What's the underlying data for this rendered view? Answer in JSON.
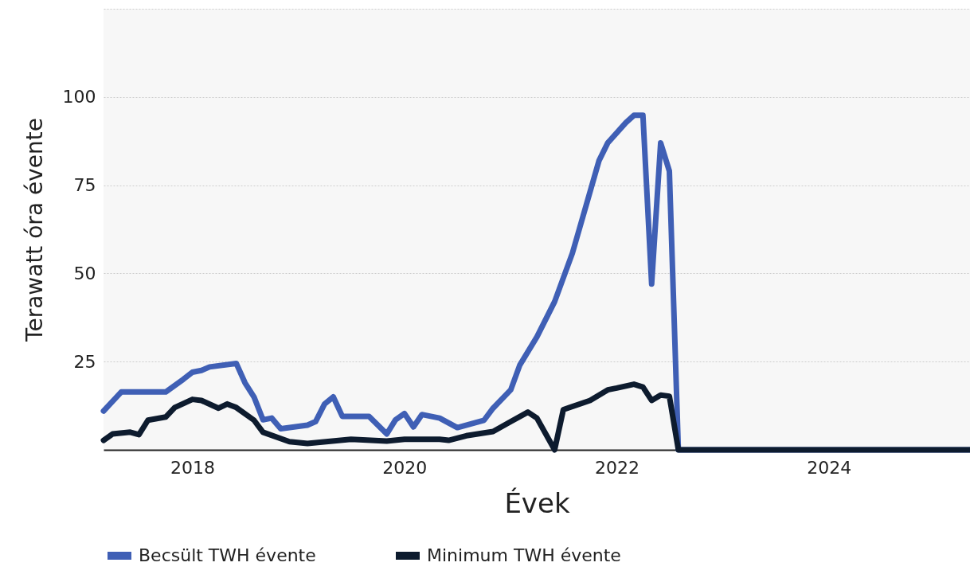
{
  "chart_data": {
    "type": "line",
    "xlabel": "Évek",
    "ylabel": "Terawatt óra évente",
    "xlim": [
      "2017-03",
      "2025-05"
    ],
    "xticks": [
      "2018",
      "2020",
      "2022",
      "2024"
    ],
    "ylim": [
      0,
      125
    ],
    "yticks": [
      25,
      50,
      75,
      100,
      {
        "value": 125,
        "label": null
      }
    ],
    "grid": "y",
    "legend": "bottom",
    "line_style": "solid",
    "marker": "none",
    "series": [
      {
        "name": "Becsült TWH évente",
        "color": "#3f5fb5",
        "x": [
          "2017-03",
          "2017-05",
          "2017-10",
          "2017-12",
          "2018-01",
          "2018-02",
          "2018-03",
          "2018-06",
          "2018-07",
          "2018-08",
          "2018-09",
          "2018-10",
          "2018-11",
          "2019-02",
          "2019-03",
          "2019-04",
          "2019-05",
          "2019-06",
          "2019-09",
          "2019-11",
          "2019-12",
          "2020-01",
          "2020-02",
          "2020-03",
          "2020-05",
          "2020-07",
          "2020-10",
          "2020-11",
          "2021-01",
          "2021-02",
          "2021-04",
          "2021-06",
          "2021-08",
          "2021-11",
          "2021-12",
          "2022-02",
          "2022-03",
          "2022-04",
          "2022-05",
          "2022-06",
          "2022-07",
          "2022-08",
          "2025-05"
        ],
        "values": [
          11,
          16.4,
          16.4,
          20,
          22,
          22.5,
          23.5,
          24.5,
          19,
          15,
          8.5,
          9,
          6,
          7,
          8,
          13,
          15,
          9.5,
          9.5,
          4.5,
          8.5,
          10.3,
          6.5,
          10,
          9,
          6.3,
          8.4,
          11.8,
          17,
          24,
          32,
          42,
          55.7,
          82,
          87,
          92.7,
          94.8,
          94.8,
          47,
          87,
          79,
          0,
          0
        ]
      },
      {
        "name": "Minimum TWH évente",
        "color": "#0d1b2e",
        "x": [
          "2017-03",
          "2017-04",
          "2017-06",
          "2017-07",
          "2017-08",
          "2017-10",
          "2017-11",
          "2018-01",
          "2018-02",
          "2018-04",
          "2018-05",
          "2018-06",
          "2018-08",
          "2018-09",
          "2018-12",
          "2019-02",
          "2019-07",
          "2019-11",
          "2020-01",
          "2020-05",
          "2020-06",
          "2020-08",
          "2020-11",
          "2021-01",
          "2021-03",
          "2021-04",
          "2021-06",
          "2021-07",
          "2021-10",
          "2021-12",
          "2022-01",
          "2022-03",
          "2022-04",
          "2022-05",
          "2022-06",
          "2022-07",
          "2022-08",
          "2025-05"
        ],
        "values": [
          2.7,
          4.5,
          5,
          4.3,
          8.4,
          9.3,
          12,
          14.3,
          14,
          11.8,
          13,
          12,
          8.4,
          5,
          2.3,
          1.8,
          3,
          2.5,
          3,
          3,
          2.7,
          4,
          5.2,
          8,
          10.7,
          9,
          0,
          11.4,
          14,
          17,
          17.5,
          18.6,
          17.8,
          14,
          15.5,
          15.2,
          0,
          0
        ]
      }
    ]
  }
}
